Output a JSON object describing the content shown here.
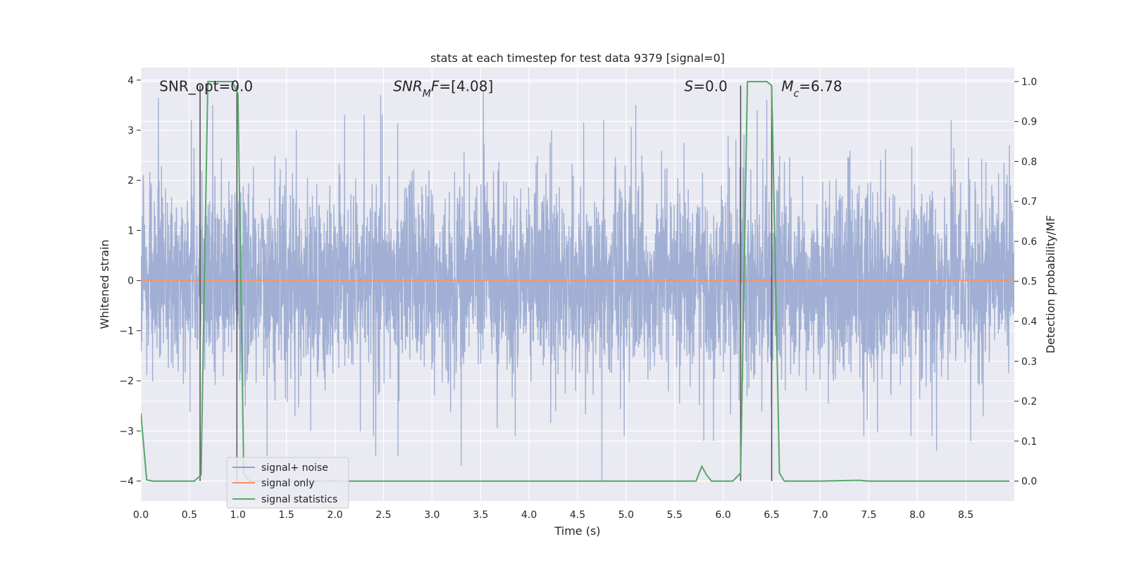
{
  "chart_data": {
    "type": "line",
    "title": "stats at each timestep for test data 9379 [signal=0]",
    "xlabel": "Time (s)",
    "ylabel_left": "Whitened strain",
    "ylabel_right": "Detection probability/MF",
    "xlim": [
      0.0,
      9.0
    ],
    "ylim_left": [
      -4.4,
      4.25
    ],
    "ylim_right": [
      -0.05,
      1.035
    ],
    "grid": true,
    "x_ticks": [
      0.0,
      0.5,
      1.0,
      1.5,
      2.0,
      2.5,
      3.0,
      3.5,
      4.0,
      4.5,
      5.0,
      5.5,
      6.0,
      6.5,
      7.0,
      7.5,
      8.0,
      8.5
    ],
    "x_tick_labels": [
      "0.0",
      "0.5",
      "1.0",
      "1.5",
      "2.0",
      "2.5",
      "3.0",
      "3.5",
      "4.0",
      "4.5",
      "5.0",
      "5.5",
      "6.0",
      "6.5",
      "7.0",
      "7.5",
      "8.0",
      "8.5"
    ],
    "y_left_ticks": [
      -4,
      -3,
      -2,
      -1,
      0,
      1,
      2,
      3,
      4
    ],
    "y_left_tick_labels": [
      "−4",
      "−3",
      "−2",
      "−1",
      "0",
      "1",
      "2",
      "3",
      "4"
    ],
    "y_right_ticks": [
      0.0,
      0.1,
      0.2,
      0.3,
      0.4,
      0.5,
      0.6,
      0.7,
      0.8,
      0.9,
      1.0
    ],
    "y_right_tick_labels": [
      "0.0",
      "0.1",
      "0.2",
      "0.3",
      "0.4",
      "0.5",
      "0.6",
      "0.7",
      "0.8",
      "0.9",
      "1.0"
    ],
    "legend_position": "lower-left",
    "series": [
      {
        "name": "signal+ noise",
        "axis": "left",
        "color": "#8da0cb",
        "style": "noise-band",
        "sample_rate": 512,
        "typical_envelope": [
          -1.8,
          2.0
        ],
        "peaks": [
          [
            0.18,
            3.65
          ],
          [
            0.52,
            3.2
          ],
          [
            0.74,
            3.5
          ],
          [
            1.02,
            -2.0
          ],
          [
            1.3,
            -3.5
          ],
          [
            1.75,
            -3.0
          ],
          [
            2.1,
            3.3
          ],
          [
            2.3,
            3.3
          ],
          [
            2.42,
            -3.5
          ],
          [
            2.47,
            3.7
          ],
          [
            2.65,
            -3.5
          ],
          [
            3.3,
            -3.7
          ],
          [
            3.53,
            3.8
          ],
          [
            4.75,
            -4.0
          ],
          [
            4.77,
            3.2
          ],
          [
            5.1,
            3.5
          ],
          [
            5.8,
            -3.2
          ],
          [
            5.9,
            -3.2
          ],
          [
            6.35,
            3.4
          ],
          [
            6.45,
            3.6
          ],
          [
            7.45,
            -3.1
          ],
          [
            8.2,
            -3.4
          ],
          [
            8.35,
            3.2
          ],
          [
            8.55,
            -3.2
          ],
          [
            8.95,
            2.7
          ]
        ]
      },
      {
        "name": "signal only",
        "axis": "left",
        "color": "#fc8d62",
        "x": [
          0.0,
          9.0
        ],
        "y": [
          0.0,
          0.0
        ]
      },
      {
        "name": "signal statistics",
        "axis": "right",
        "color": "#55a868",
        "x": [
          0.0,
          0.06,
          0.12,
          0.55,
          0.62,
          0.69,
          0.75,
          0.94,
          1.0,
          1.06,
          1.12,
          1.2,
          5.6,
          5.72,
          5.78,
          5.83,
          5.88,
          5.95,
          6.1,
          6.18,
          6.25,
          6.3,
          6.45,
          6.5,
          6.58,
          6.63,
          6.75,
          7.0,
          7.4,
          7.5,
          8.95
        ],
        "y": [
          0.17,
          0.003,
          0.0,
          0.0,
          0.015,
          1.0,
          1.0,
          1.0,
          0.97,
          0.02,
          0.0,
          0.0,
          0.0,
          0.0,
          0.037,
          0.015,
          0.0,
          0.0,
          0.0,
          0.02,
          1.0,
          1.0,
          1.0,
          0.99,
          0.02,
          0.0,
          0.0,
          0.0,
          0.002,
          0.0,
          0.0
        ]
      }
    ],
    "vertical_lines": [
      {
        "x": 0.61,
        "y0": 0.0,
        "y1": 0.99
      },
      {
        "x": 0.99,
        "y0": 0.0,
        "y1": 0.99
      },
      {
        "x": 6.18,
        "y0": 0.0,
        "y1": 0.99
      },
      {
        "x": 6.5,
        "y0": 0.0,
        "y1": 0.99
      }
    ],
    "annotations": [
      {
        "id": "snr-opt",
        "x": 0.19,
        "y": 3.88,
        "parts": [
          {
            "t": "SNR_opt=0.0"
          }
        ]
      },
      {
        "id": "snr-mf",
        "x": 2.6,
        "y": 3.88,
        "parts": [
          {
            "t": "SNR",
            "i": true
          },
          {
            "t": "M",
            "i": true,
            "sub": true
          },
          {
            "t": "F",
            "i": true
          },
          {
            "t": "=[4.08]"
          }
        ]
      },
      {
        "id": "s-value",
        "x": 5.6,
        "y": 3.88,
        "parts": [
          {
            "t": "S",
            "i": true
          },
          {
            "t": "=0.0"
          }
        ]
      },
      {
        "id": "mc-value",
        "x": 6.6,
        "y": 3.88,
        "parts": [
          {
            "t": "M",
            "i": true
          },
          {
            "t": "c",
            "i": true,
            "sub": true
          },
          {
            "t": "=6.78"
          }
        ]
      }
    ]
  }
}
